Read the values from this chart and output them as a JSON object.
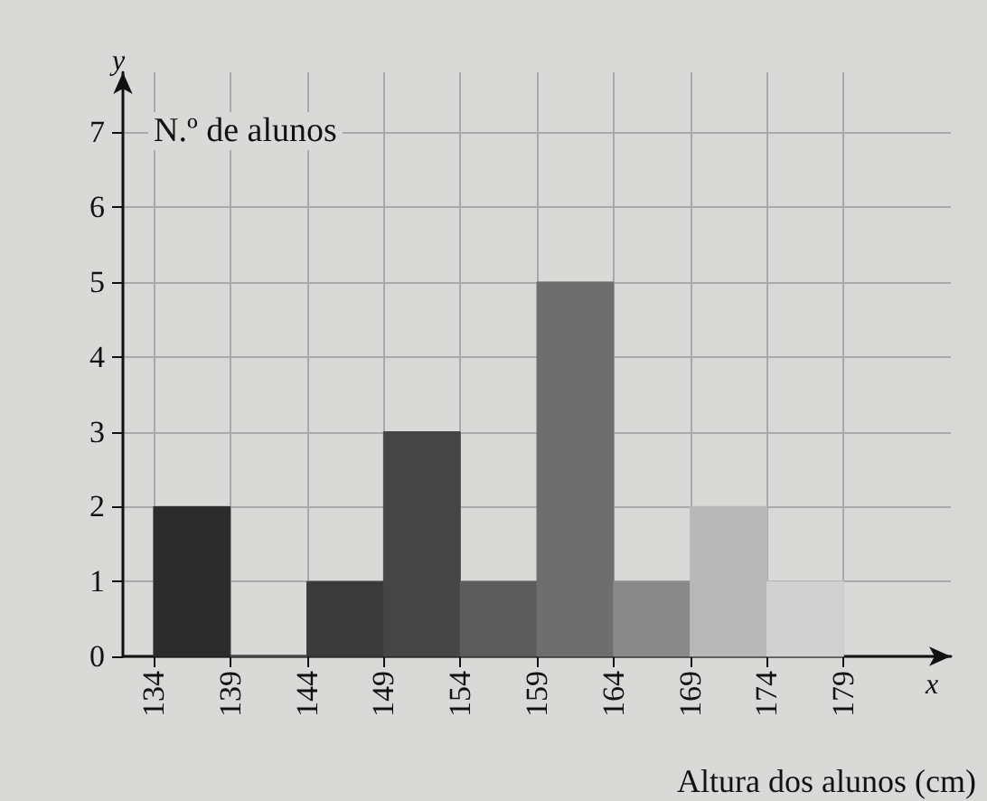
{
  "chart_data": {
    "type": "histogram",
    "xlabel": "Altura dos alunos (cm)",
    "ylabel": "N.º de alunos",
    "annotations": [
      "y",
      "x"
    ],
    "bins": [
      134,
      139,
      144,
      149,
      154,
      159,
      164,
      169,
      174,
      179
    ],
    "values": [
      2,
      0,
      1,
      3,
      1,
      5,
      1,
      2,
      1
    ],
    "colors": [
      "#2b2b2b",
      "#555555",
      "#3a3a3a",
      "#454545",
      "#5c5c5c",
      "#6e6e6e",
      "#8a8a8a",
      "#b8b8b8",
      "#d0d0d0"
    ],
    "xlim": [
      132,
      186
    ],
    "xticks": [
      134,
      139,
      144,
      149,
      154,
      159,
      164,
      169,
      174,
      179
    ],
    "ylim": [
      0,
      7.8
    ],
    "yticks": [
      0,
      1,
      2,
      3,
      4,
      5,
      6,
      7
    ],
    "grid": true
  }
}
